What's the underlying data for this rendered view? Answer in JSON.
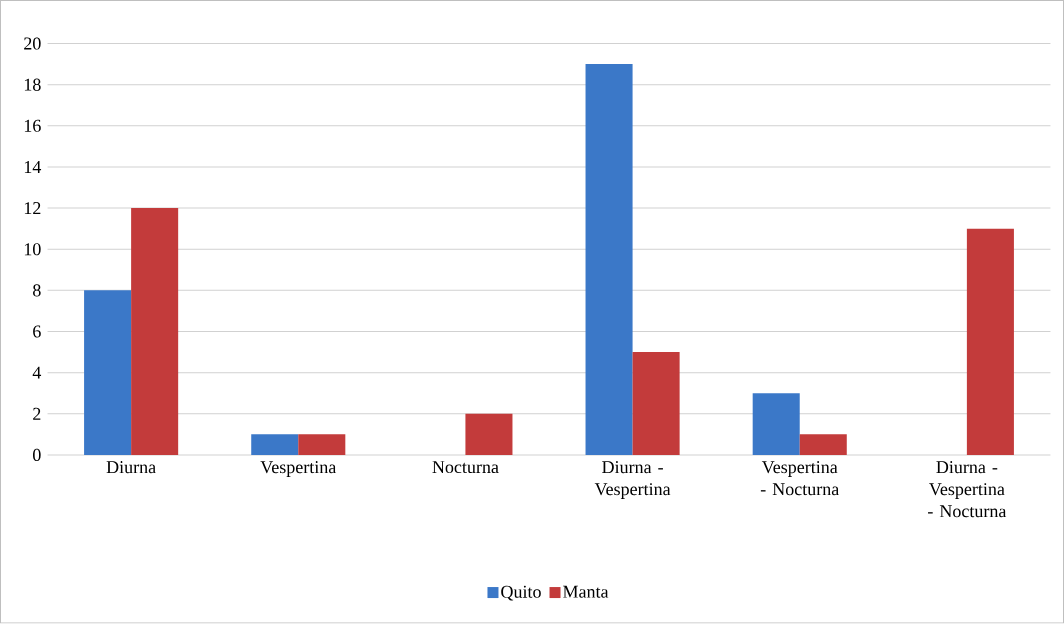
{
  "chart_data": {
    "type": "bar",
    "categories": [
      "Diurna",
      "Vespertina",
      "Nocturna",
      "Diurna - Vespertina",
      "Vespertina - Nocturna",
      "Diurna - Vespertina - Nocturna"
    ],
    "series": [
      {
        "name": "Quito",
        "color": "#3b78c8",
        "values": [
          8,
          1,
          0,
          19,
          3,
          0
        ]
      },
      {
        "name": "Manta",
        "color": "#c33b3b",
        "values": [
          12,
          1,
          2,
          5,
          1,
          11
        ]
      }
    ],
    "ylim": [
      0,
      20
    ],
    "yticks": [
      0,
      2,
      4,
      6,
      8,
      10,
      12,
      14,
      16,
      18,
      20
    ],
    "grid": "y",
    "legend": "bottom"
  }
}
